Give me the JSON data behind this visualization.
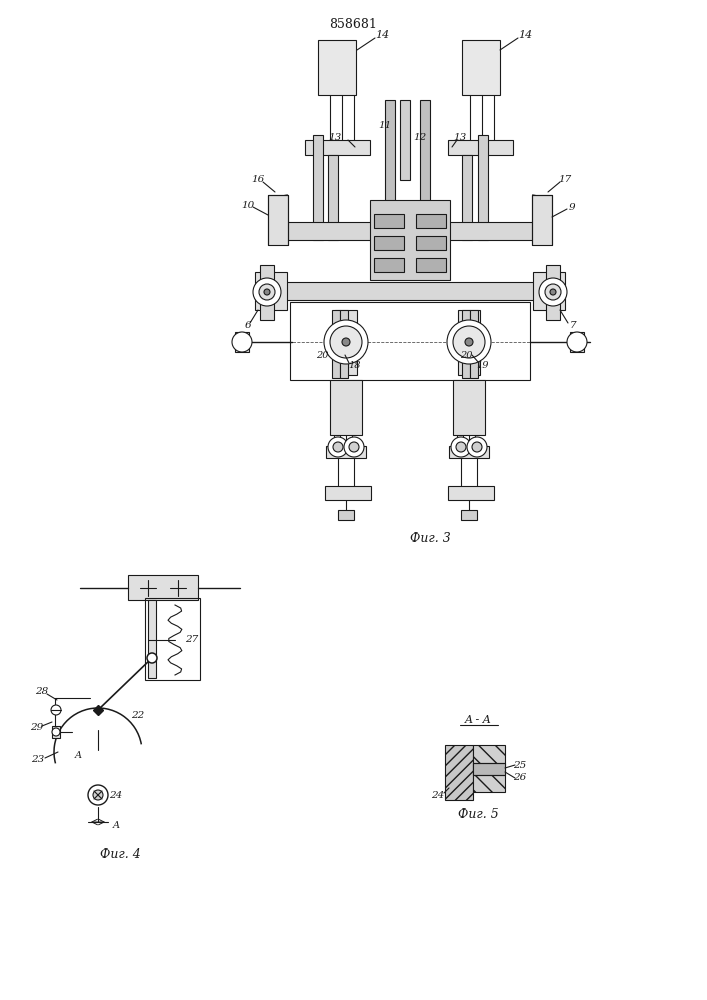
{
  "title": "858681",
  "bg_color": "#ffffff",
  "line_color": "#1a1a1a",
  "fig3_label": "Фиг. 3",
  "fig4_label": "Фиг. 4",
  "fig5_label": "Фиг. 5",
  "aa_label": "A - A"
}
